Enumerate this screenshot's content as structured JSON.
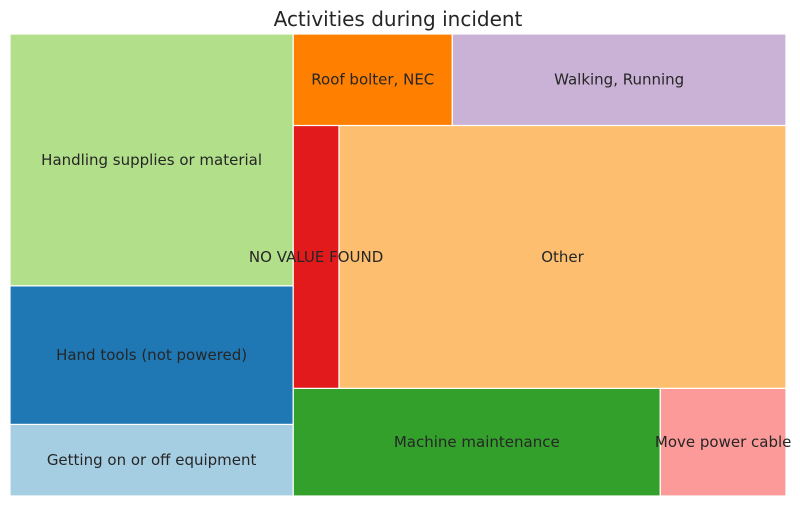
{
  "chart_data": {
    "type": "treemap",
    "title": "Activities during incident",
    "xlim": [
      0,
      100
    ],
    "ylim": [
      0,
      100
    ],
    "cells": [
      {
        "label": "Getting on or off equipment",
        "x": 0,
        "y": 0,
        "dx": 36.5,
        "dy": 15.5,
        "color": "#a6cee3"
      },
      {
        "label": "Hand tools (not powered)",
        "x": 0,
        "y": 15.5,
        "dx": 36.5,
        "dy": 30.0,
        "color": "#1f78b4"
      },
      {
        "label": "Handling supplies or material",
        "x": 0,
        "y": 45.5,
        "dx": 36.5,
        "dy": 54.5,
        "color": "#b2df8a"
      },
      {
        "label": "Machine maintenance",
        "x": 36.5,
        "y": 0,
        "dx": 47.3,
        "dy": 23.3,
        "color": "#33a02c"
      },
      {
        "label": "Move power cable",
        "x": 83.8,
        "y": 0,
        "dx": 16.2,
        "dy": 23.3,
        "color": "#fb9a99"
      },
      {
        "label": "NO VALUE FOUND",
        "x": 36.5,
        "y": 23.3,
        "dx": 5.9,
        "dy": 56.9,
        "color": "#e31a1c"
      },
      {
        "label": "Other",
        "x": 42.4,
        "y": 23.3,
        "dx": 57.6,
        "dy": 56.9,
        "color": "#fdbf6f"
      },
      {
        "label": "Roof bolter, NEC",
        "x": 36.5,
        "y": 80.2,
        "dx": 20.5,
        "dy": 19.8,
        "color": "#ff7f00"
      },
      {
        "label": "Walking, Running",
        "x": 57.0,
        "y": 80.2,
        "dx": 43.0,
        "dy": 19.8,
        "color": "#cab2d6"
      }
    ]
  }
}
